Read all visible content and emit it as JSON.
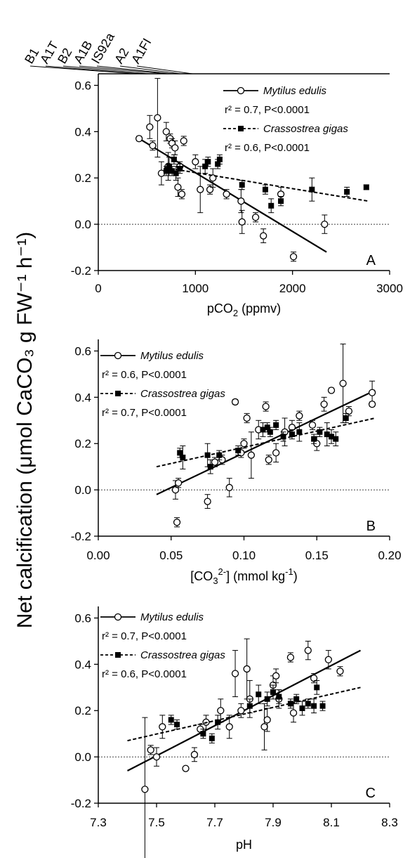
{
  "ylabel": "Net calcification (μmol CaCO₃ g FW⁻¹ h⁻¹)",
  "scenarios": [
    {
      "label": "B1",
      "x": 400
    },
    {
      "label": "A1T",
      "x": 420
    },
    {
      "label": "B2",
      "x": 530
    },
    {
      "label": "A1B",
      "x": 700
    },
    {
      "label": "IS92a",
      "x": 760
    },
    {
      "label": "A2",
      "x": 850
    },
    {
      "label": "A1FI",
      "x": 970
    }
  ],
  "colors": {
    "mytilus": "#000000",
    "crassostrea": "#000000"
  },
  "chart_data": [
    {
      "type": "scatter",
      "panel": "A",
      "xlabel": "pCO2 (ppmv)",
      "xlim": [
        0,
        3000
      ],
      "ylim": [
        -0.2,
        0.65
      ],
      "xticks": [
        0,
        1000,
        2000,
        3000
      ],
      "xtick_labels": [
        "0",
        "1000",
        "2000",
        "3000"
      ],
      "yticks": [
        -0.2,
        0.0,
        0.2,
        0.4,
        0.6
      ],
      "ytick_labels": [
        "-0.2",
        "0.0",
        "0.2",
        "0.4",
        "0.6"
      ],
      "legend_position": "top-right",
      "series": [
        {
          "name": "Mytilus edulis",
          "marker": "open-circle",
          "stat": "r² = 0.7, P<0.0001",
          "fit": {
            "style": "solid",
            "x": [
              420,
              2350
            ],
            "y": [
              0.37,
              -0.12
            ]
          },
          "points": [
            {
              "x": 420,
              "y": 0.37,
              "e": 0.01
            },
            {
              "x": 530,
              "y": 0.42,
              "e": 0.05
            },
            {
              "x": 560,
              "y": 0.34,
              "e": 0.02
            },
            {
              "x": 610,
              "y": 0.46,
              "e": 0.17
            },
            {
              "x": 650,
              "y": 0.22,
              "e": 0.05
            },
            {
              "x": 700,
              "y": 0.4,
              "e": 0.04
            },
            {
              "x": 720,
              "y": 0.25,
              "e": 0.06
            },
            {
              "x": 740,
              "y": 0.37,
              "e": 0.02
            },
            {
              "x": 760,
              "y": 0.35,
              "e": 0.02
            },
            {
              "x": 790,
              "y": 0.33,
              "e": 0.03
            },
            {
              "x": 820,
              "y": 0.16,
              "e": 0.04
            },
            {
              "x": 840,
              "y": 0.25,
              "e": 0.02
            },
            {
              "x": 860,
              "y": 0.13,
              "e": 0.02
            },
            {
              "x": 880,
              "y": 0.36,
              "e": 0.02
            },
            {
              "x": 1000,
              "y": 0.27,
              "e": 0.03
            },
            {
              "x": 1050,
              "y": 0.15,
              "e": 0.1
            },
            {
              "x": 1150,
              "y": 0.15,
              "e": 0.02
            },
            {
              "x": 1180,
              "y": 0.2,
              "e": 0.04
            },
            {
              "x": 1320,
              "y": 0.13,
              "e": 0.02
            },
            {
              "x": 1470,
              "y": 0.1,
              "e": 0.05
            },
            {
              "x": 1480,
              "y": 0.01,
              "e": 0.05
            },
            {
              "x": 1620,
              "y": 0.03,
              "e": 0.02
            },
            {
              "x": 1700,
              "y": -0.05,
              "e": 0.03
            },
            {
              "x": 1880,
              "y": 0.13,
              "e": 0.03
            },
            {
              "x": 2010,
              "y": -0.14,
              "e": 0.02
            },
            {
              "x": 2330,
              "y": 0.0,
              "e": 0.04
            }
          ]
        },
        {
          "name": "Crassostrea gigas",
          "marker": "filled-square",
          "stat": "r² = 0.6, P<0.0001",
          "fit": {
            "style": "dashed",
            "x": [
              680,
              2780
            ],
            "y": [
              0.245,
              0.1
            ]
          },
          "points": [
            {
              "x": 700,
              "y": 0.23,
              "e": 0.02
            },
            {
              "x": 730,
              "y": 0.25,
              "e": 0.04
            },
            {
              "x": 760,
              "y": 0.23,
              "e": 0.02
            },
            {
              "x": 780,
              "y": 0.28,
              "e": 0.02
            },
            {
              "x": 800,
              "y": 0.22,
              "e": 0.03
            },
            {
              "x": 840,
              "y": 0.24,
              "e": 0.02
            },
            {
              "x": 1100,
              "y": 0.25,
              "e": 0.03
            },
            {
              "x": 1130,
              "y": 0.27,
              "e": 0.02
            },
            {
              "x": 1230,
              "y": 0.26,
              "e": 0.02
            },
            {
              "x": 1250,
              "y": 0.28,
              "e": 0.02
            },
            {
              "x": 1480,
              "y": 0.17,
              "e": 0.02
            },
            {
              "x": 1720,
              "y": 0.15,
              "e": 0.02
            },
            {
              "x": 1780,
              "y": 0.08,
              "e": 0.03
            },
            {
              "x": 1880,
              "y": 0.1,
              "e": 0.02
            },
            {
              "x": 2200,
              "y": 0.15,
              "e": 0.05
            },
            {
              "x": 2560,
              "y": 0.14,
              "e": 0.02
            },
            {
              "x": 2760,
              "y": 0.16,
              "e": 0.01
            }
          ]
        }
      ]
    },
    {
      "type": "scatter",
      "panel": "B",
      "xlabel": "[CO3 2-] (mmol kg-1)",
      "xlabel_parts": {
        "open": "[CO",
        "sub": "3",
        "sup": "2-",
        "mid": "] (mmol kg",
        "sup2": "-1",
        "close": ")"
      },
      "xlim": [
        0.0,
        0.2
      ],
      "ylim": [
        -0.2,
        0.65
      ],
      "xticks": [
        0.0,
        0.05,
        0.1,
        0.15,
        0.2
      ],
      "xtick_labels": [
        "0.00",
        "0.05",
        "0.10",
        "0.15",
        "0.20"
      ],
      "yticks": [
        -0.2,
        0.0,
        0.2,
        0.4,
        0.6
      ],
      "ytick_labels": [
        "-0.2",
        "0.0",
        "0.2",
        "0.4",
        "0.6"
      ],
      "legend_position": "top-left",
      "series": [
        {
          "name": "Mytilus edulis",
          "marker": "open-circle",
          "stat": "r² = 0.6, P<0.0001",
          "fit": {
            "style": "solid",
            "x": [
              0.04,
              0.19
            ],
            "y": [
              -0.02,
              0.43
            ]
          },
          "points": [
            {
              "x": 0.053,
              "y": 0.0,
              "e": 0.04
            },
            {
              "x": 0.054,
              "y": -0.14,
              "e": 0.02
            },
            {
              "x": 0.055,
              "y": 0.03,
              "e": 0.02
            },
            {
              "x": 0.075,
              "y": -0.05,
              "e": 0.03
            },
            {
              "x": 0.08,
              "y": 0.12,
              "e": 0.02
            },
            {
              "x": 0.085,
              "y": 0.13,
              "e": 0.02
            },
            {
              "x": 0.09,
              "y": 0.01,
              "e": 0.04
            },
            {
              "x": 0.094,
              "y": 0.38,
              "e": 0.01
            },
            {
              "x": 0.098,
              "y": 0.16,
              "e": 0.02
            },
            {
              "x": 0.1,
              "y": 0.2,
              "e": 0.02
            },
            {
              "x": 0.102,
              "y": 0.31,
              "e": 0.02
            },
            {
              "x": 0.105,
              "y": 0.15,
              "e": 0.1
            },
            {
              "x": 0.11,
              "y": 0.26,
              "e": 0.04
            },
            {
              "x": 0.115,
              "y": 0.36,
              "e": 0.02
            },
            {
              "x": 0.117,
              "y": 0.13,
              "e": 0.02
            },
            {
              "x": 0.122,
              "y": 0.16,
              "e": 0.04
            },
            {
              "x": 0.128,
              "y": 0.25,
              "e": 0.06
            },
            {
              "x": 0.133,
              "y": 0.27,
              "e": 0.03
            },
            {
              "x": 0.138,
              "y": 0.32,
              "e": 0.02
            },
            {
              "x": 0.147,
              "y": 0.28,
              "e": 0.02
            },
            {
              "x": 0.15,
              "y": 0.2,
              "e": 0.03
            },
            {
              "x": 0.155,
              "y": 0.37,
              "e": 0.03
            },
            {
              "x": 0.16,
              "y": 0.43,
              "e": 0.01
            },
            {
              "x": 0.168,
              "y": 0.46,
              "e": 0.17
            },
            {
              "x": 0.172,
              "y": 0.34,
              "e": 0.02
            },
            {
              "x": 0.188,
              "y": 0.42,
              "e": 0.05
            },
            {
              "x": 0.188,
              "y": 0.37,
              "e": 0.01
            }
          ]
        },
        {
          "name": "Crassostrea gigas",
          "marker": "filled-square",
          "stat": "r² = 0.7, P<0.0001",
          "fit": {
            "style": "dashed",
            "x": [
              0.04,
              0.19
            ],
            "y": [
              0.1,
              0.31
            ]
          },
          "points": [
            {
              "x": 0.056,
              "y": 0.16,
              "e": 0.02
            },
            {
              "x": 0.058,
              "y": 0.14,
              "e": 0.05
            },
            {
              "x": 0.075,
              "y": 0.15,
              "e": 0.05
            },
            {
              "x": 0.077,
              "y": 0.1,
              "e": 0.03
            },
            {
              "x": 0.083,
              "y": 0.15,
              "e": 0.02
            },
            {
              "x": 0.096,
              "y": 0.17,
              "e": 0.02
            },
            {
              "x": 0.113,
              "y": 0.26,
              "e": 0.03
            },
            {
              "x": 0.116,
              "y": 0.27,
              "e": 0.02
            },
            {
              "x": 0.118,
              "y": 0.25,
              "e": 0.02
            },
            {
              "x": 0.122,
              "y": 0.28,
              "e": 0.02
            },
            {
              "x": 0.127,
              "y": 0.23,
              "e": 0.02
            },
            {
              "x": 0.133,
              "y": 0.24,
              "e": 0.02
            },
            {
              "x": 0.138,
              "y": 0.25,
              "e": 0.04
            },
            {
              "x": 0.148,
              "y": 0.22,
              "e": 0.02
            },
            {
              "x": 0.152,
              "y": 0.25,
              "e": 0.02
            },
            {
              "x": 0.157,
              "y": 0.24,
              "e": 0.05
            },
            {
              "x": 0.16,
              "y": 0.23,
              "e": 0.03
            },
            {
              "x": 0.163,
              "y": 0.22,
              "e": 0.03
            },
            {
              "x": 0.17,
              "y": 0.31,
              "e": 0.02
            }
          ]
        }
      ]
    },
    {
      "type": "scatter",
      "panel": "C",
      "xlabel": "pH",
      "xlim": [
        7.3,
        8.3
      ],
      "ylim": [
        -0.2,
        0.65
      ],
      "xticks": [
        7.3,
        7.5,
        7.7,
        7.9,
        8.1,
        8.3
      ],
      "xtick_labels": [
        "7.3",
        "7.5",
        "7.7",
        "7.9",
        "8.1",
        "8.3"
      ],
      "yticks": [
        -0.2,
        0.0,
        0.2,
        0.4,
        0.6
      ],
      "ytick_labels": [
        "-0.2",
        "0.0",
        "0.2",
        "0.4",
        "0.6"
      ],
      "legend_position": "top-left",
      "series": [
        {
          "name": "Mytilus edulis",
          "marker": "open-circle",
          "stat": "r² = 0.7, P<0.0001",
          "fit": {
            "style": "solid",
            "x": [
              7.4,
              8.2
            ],
            "y": [
              -0.06,
              0.46
            ]
          },
          "points": [
            {
              "x": 7.46,
              "y": -0.14,
              "e": 0.31
            },
            {
              "x": 7.48,
              "y": 0.03,
              "e": 0.02
            },
            {
              "x": 7.5,
              "y": 0.0,
              "e": 0.04
            },
            {
              "x": 7.52,
              "y": 0.13,
              "e": 0.05
            },
            {
              "x": 7.6,
              "y": -0.05,
              "e": 0.0
            },
            {
              "x": 7.63,
              "y": 0.01,
              "e": 0.03
            },
            {
              "x": 7.65,
              "y": 0.12,
              "e": 0.02
            },
            {
              "x": 7.67,
              "y": 0.15,
              "e": 0.03
            },
            {
              "x": 7.72,
              "y": 0.2,
              "e": 0.05
            },
            {
              "x": 7.75,
              "y": 0.13,
              "e": 0.05
            },
            {
              "x": 7.77,
              "y": 0.36,
              "e": 0.1
            },
            {
              "x": 7.79,
              "y": 0.2,
              "e": 0.03
            },
            {
              "x": 7.81,
              "y": 0.38,
              "e": 0.13
            },
            {
              "x": 7.82,
              "y": 0.25,
              "e": 0.08
            },
            {
              "x": 7.87,
              "y": 0.13,
              "e": 0.1
            },
            {
              "x": 7.88,
              "y": 0.16,
              "e": 0.05
            },
            {
              "x": 7.9,
              "y": 0.31,
              "e": 0.04
            },
            {
              "x": 7.91,
              "y": 0.35,
              "e": 0.03
            },
            {
              "x": 7.92,
              "y": 0.25,
              "e": 0.04
            },
            {
              "x": 7.96,
              "y": 0.43,
              "e": 0.02
            },
            {
              "x": 7.97,
              "y": 0.19,
              "e": 0.04
            },
            {
              "x": 8.02,
              "y": 0.46,
              "e": 0.04
            },
            {
              "x": 8.04,
              "y": 0.34,
              "e": 0.02
            },
            {
              "x": 8.09,
              "y": 0.42,
              "e": 0.04
            },
            {
              "x": 8.13,
              "y": 0.37,
              "e": 0.02
            }
          ]
        },
        {
          "name": "Crassostrea gigas",
          "marker": "filled-square",
          "stat": "r² = 0.6, P<0.0001",
          "fit": {
            "style": "dashed",
            "x": [
              7.4,
              8.2
            ],
            "y": [
              0.07,
              0.3
            ]
          },
          "points": [
            {
              "x": 7.55,
              "y": 0.16,
              "e": 0.02
            },
            {
              "x": 7.57,
              "y": 0.14,
              "e": 0.02
            },
            {
              "x": 7.66,
              "y": 0.1,
              "e": 0.02
            },
            {
              "x": 7.69,
              "y": 0.08,
              "e": 0.02
            },
            {
              "x": 7.71,
              "y": 0.15,
              "e": 0.03
            },
            {
              "x": 7.82,
              "y": 0.22,
              "e": 0.03
            },
            {
              "x": 7.85,
              "y": 0.27,
              "e": 0.04
            },
            {
              "x": 7.88,
              "y": 0.25,
              "e": 0.03
            },
            {
              "x": 7.9,
              "y": 0.28,
              "e": 0.03
            },
            {
              "x": 7.92,
              "y": 0.26,
              "e": 0.03
            },
            {
              "x": 7.96,
              "y": 0.23,
              "e": 0.02
            },
            {
              "x": 7.98,
              "y": 0.25,
              "e": 0.02
            },
            {
              "x": 8.0,
              "y": 0.21,
              "e": 0.03
            },
            {
              "x": 8.02,
              "y": 0.23,
              "e": 0.02
            },
            {
              "x": 8.04,
              "y": 0.22,
              "e": 0.03
            },
            {
              "x": 8.05,
              "y": 0.3,
              "e": 0.03
            },
            {
              "x": 8.07,
              "y": 0.22,
              "e": 0.02
            }
          ]
        }
      ]
    }
  ]
}
